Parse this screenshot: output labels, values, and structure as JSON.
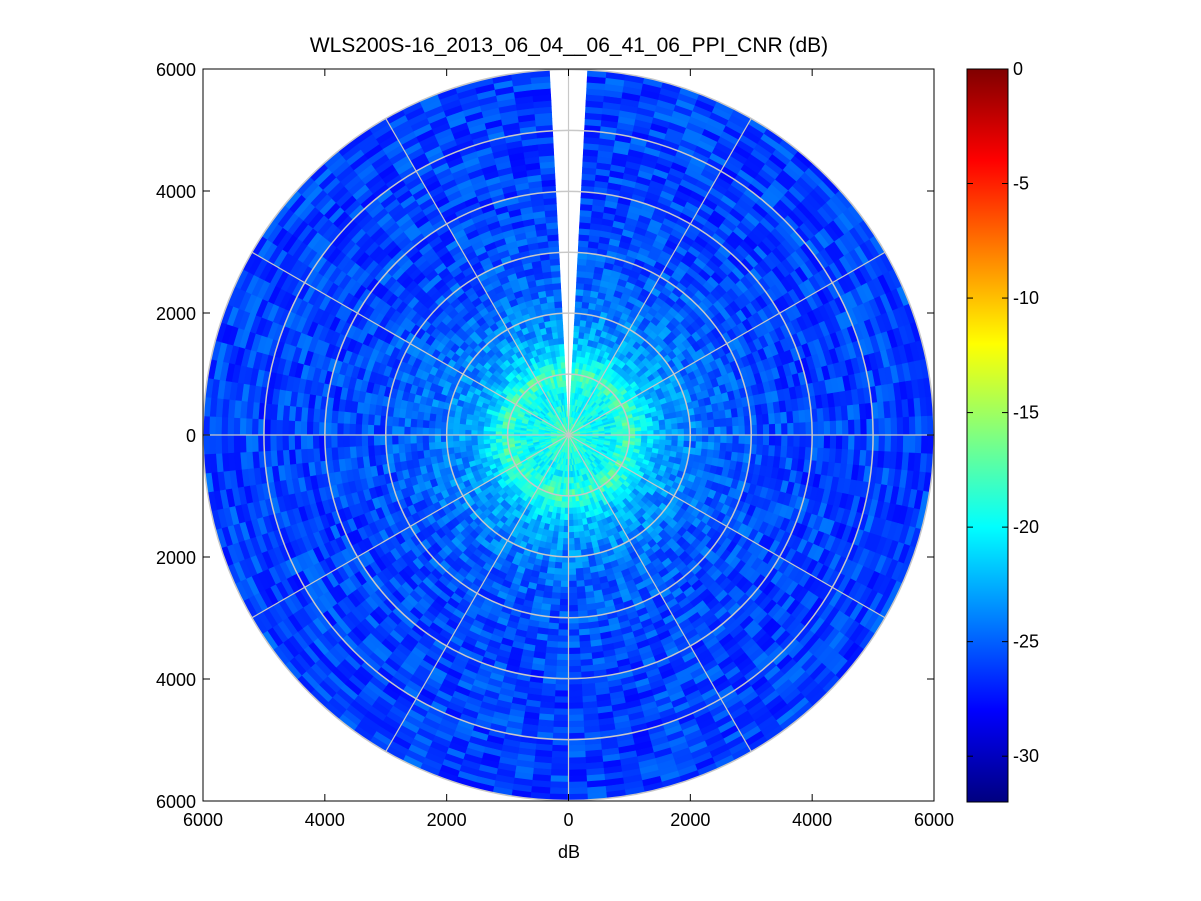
{
  "chart_data": {
    "type": "heatmap",
    "subtype": "polar-ppi",
    "title": "WLS200S-16_2013_06_04__06_41_06_PPI_CNR (dB)",
    "xlabel": "dB",
    "ylabel": "",
    "xlim": [
      -6000,
      6000
    ],
    "ylim": [
      -6000,
      6000
    ],
    "x_ticks": [
      -6000,
      -4000,
      -2000,
      0,
      2000,
      4000,
      6000
    ],
    "x_tick_labels": [
      "6000",
      "4000",
      "2000",
      "0",
      "2000",
      "4000",
      "6000"
    ],
    "y_ticks": [
      6000,
      4000,
      2000,
      0,
      -2000,
      -4000,
      -6000
    ],
    "y_tick_labels": [
      "6000",
      "4000",
      "2000",
      "0",
      "2000",
      "4000",
      "6000"
    ],
    "max_range": 6000,
    "range_rings": [
      1000,
      2000,
      3000,
      4000,
      5000,
      6000
    ],
    "spokes_deg": [
      0,
      30,
      60,
      90,
      120,
      150,
      180,
      210,
      240,
      270,
      300,
      330
    ],
    "grid": true,
    "colormap": "jet",
    "colorbar": {
      "label": "",
      "range": [
        -32,
        0
      ],
      "ticks": [
        0,
        -5,
        -10,
        -15,
        -20,
        -25,
        -30
      ],
      "tick_labels": [
        "0",
        "-5",
        "-10",
        "-15",
        "-20",
        "-25",
        "-30"
      ],
      "placement": "right"
    },
    "cnr_profile": {
      "range_m": [
        0,
        300,
        600,
        800,
        1000,
        1200,
        1500,
        2000,
        2500,
        3000,
        4000,
        5000,
        6000
      ],
      "cnr_db": [
        -17,
        -19,
        -20,
        -19.5,
        -17.5,
        -20,
        -22.5,
        -24,
        -25,
        -25.5,
        -26,
        -26,
        -26
      ]
    },
    "missing_sector_deg": [
      -2,
      2
    ],
    "colors": {
      "grid": "#c8c8c8",
      "axes": "#000000",
      "background": "#ffffff",
      "no_data": "#ffffff"
    }
  }
}
